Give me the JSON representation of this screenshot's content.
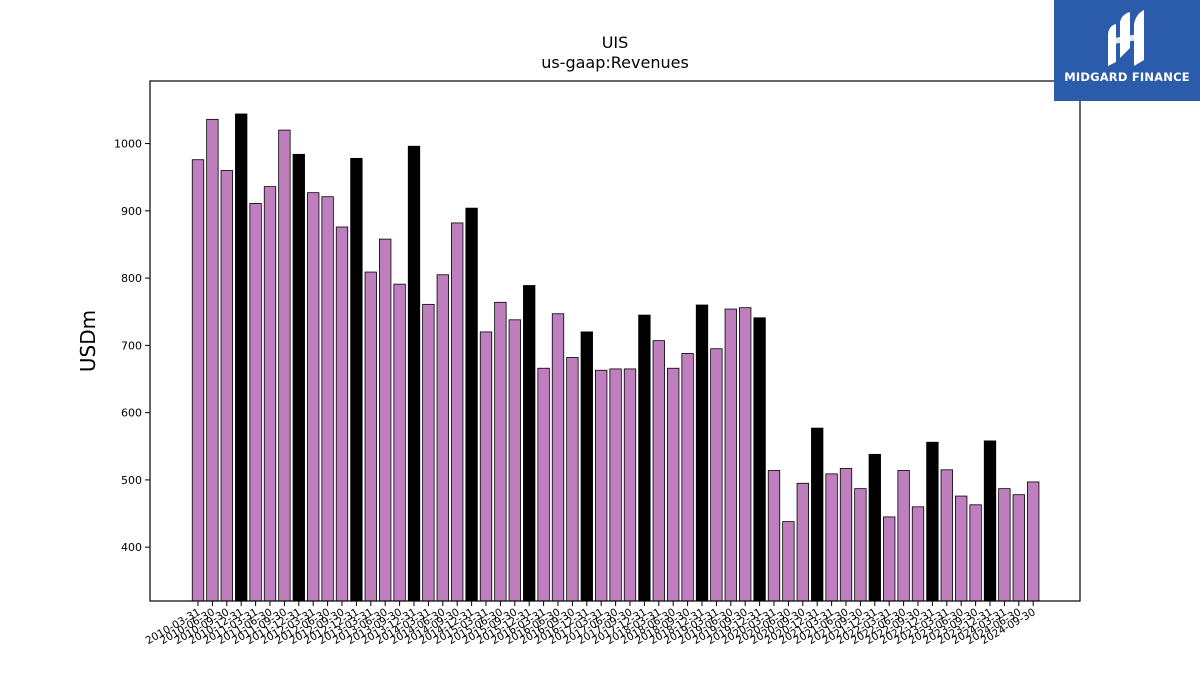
{
  "brand": {
    "name": "MIDGARD FINANCE",
    "logo_icon": "midgard-finance-logo-icon",
    "color": "#2b5cab"
  },
  "chart_data": {
    "type": "bar",
    "title": "UIS",
    "subtitle": "us-gaap:Revenues",
    "ylabel": "USDm",
    "xlabel": "",
    "ylim": [
      320,
      1093
    ],
    "yticks": [
      400,
      500,
      600,
      700,
      800,
      900,
      1000
    ],
    "grid": false,
    "colors": {
      "quarter": "#bf7fbf",
      "annual": "#000000",
      "edge": "#000000"
    },
    "categories": [
      "2010-03-31",
      "2010-06-30",
      "2010-09-30",
      "2010-12-31",
      "2011-03-31",
      "2011-06-30",
      "2011-09-30",
      "2011-12-31",
      "2012-03-31",
      "2012-06-30",
      "2012-09-30",
      "2012-12-31",
      "2013-03-31",
      "2013-06-30",
      "2013-09-30",
      "2013-12-31",
      "2014-03-31",
      "2014-06-30",
      "2014-09-30",
      "2014-12-31",
      "2015-03-31",
      "2015-06-30",
      "2015-09-30",
      "2015-12-31",
      "2016-03-31",
      "2016-06-30",
      "2016-09-30",
      "2016-12-31",
      "2017-03-31",
      "2017-06-30",
      "2017-09-30",
      "2017-12-31",
      "2018-03-31",
      "2018-06-30",
      "2018-09-30",
      "2018-12-31",
      "2019-03-31",
      "2019-06-30",
      "2019-09-30",
      "2019-12-31",
      "2020-03-31",
      "2020-06-30",
      "2020-09-30",
      "2020-12-31",
      "2021-03-31",
      "2021-06-30",
      "2021-09-30",
      "2021-12-31",
      "2022-03-31",
      "2022-06-30",
      "2022-09-30",
      "2022-12-31",
      "2023-03-31",
      "2023-06-30",
      "2023-09-30",
      "2023-12-31",
      "2024-03-31",
      "2024-06-30",
      "2024-09-30"
    ],
    "values": [
      976,
      1036,
      960,
      1044,
      911,
      936,
      1020,
      984,
      927,
      921,
      876,
      978,
      809,
      858,
      791,
      996,
      761,
      805,
      882,
      904,
      720,
      764,
      738,
      789,
      666,
      747,
      682,
      720,
      663,
      665,
      665,
      745,
      707,
      666,
      688,
      760,
      695,
      754,
      756,
      741,
      514,
      438,
      495,
      577,
      509,
      517,
      487,
      538,
      445,
      514,
      460,
      556,
      515,
      476,
      463,
      558,
      487,
      478,
      497
    ],
    "annual_flags": [
      0,
      0,
      0,
      1,
      0,
      0,
      0,
      1,
      0,
      0,
      0,
      1,
      0,
      0,
      0,
      1,
      0,
      0,
      0,
      1,
      0,
      0,
      0,
      1,
      0,
      0,
      0,
      1,
      0,
      0,
      0,
      1,
      0,
      0,
      0,
      1,
      0,
      0,
      0,
      1,
      0,
      0,
      0,
      1,
      0,
      0,
      0,
      1,
      0,
      0,
      0,
      1,
      0,
      0,
      0,
      1,
      0,
      0,
      0
    ]
  }
}
